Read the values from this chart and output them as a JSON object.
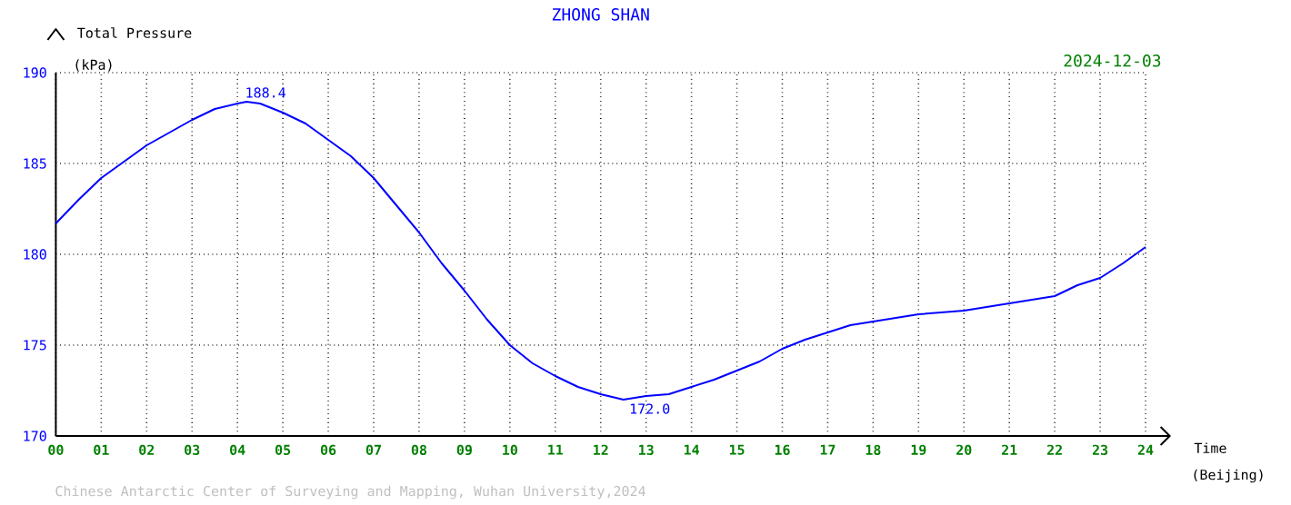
{
  "chart_data": {
    "type": "line",
    "title": "ZHONG SHAN",
    "subtitle": "2024-12-03",
    "ylabel": "Total Pressure",
    "xlabel": "Time",
    "annotations": [
      {
        "text": "188.4",
        "x": 4.2,
        "y": 188.4
      },
      {
        "text": "172.0",
        "x": 12.5,
        "y": 172.0
      },
      "(kPa)",
      "(Beijing)",
      "Chinese Antarctic Center of Surveying and Mapping, Wuhan University,2024"
    ],
    "x": [
      0,
      0.5,
      1,
      1.5,
      2,
      2.5,
      3,
      3.5,
      4,
      4.2,
      4.5,
      5,
      5.5,
      6,
      6.5,
      7,
      7.5,
      8,
      8.5,
      9,
      9.5,
      10,
      10.5,
      11,
      11.5,
      12,
      12.5,
      13,
      13.5,
      14,
      14.5,
      15,
      15.5,
      16,
      16.5,
      17,
      17.5,
      18,
      18.5,
      19,
      19.5,
      20,
      20.5,
      21,
      21.5,
      22,
      22.5,
      23,
      23.5,
      24
    ],
    "series": [
      {
        "color": "#0000ff",
        "values": [
          181.7,
          183.0,
          184.2,
          185.1,
          186.0,
          186.7,
          187.4,
          188.0,
          188.3,
          188.4,
          188.3,
          187.8,
          187.2,
          186.3,
          185.4,
          184.2,
          182.7,
          181.2,
          179.5,
          178.0,
          176.4,
          175.0,
          174.0,
          173.3,
          172.7,
          172.3,
          172.0,
          172.2,
          172.3,
          172.7,
          173.1,
          173.6,
          174.1,
          174.8,
          175.3,
          175.7,
          176.1,
          176.3,
          176.5,
          176.7,
          176.8,
          176.9,
          177.1,
          177.3,
          177.5,
          177.7,
          178.3,
          178.7,
          179.5,
          180.4
        ]
      }
    ],
    "xlim": [
      0,
      24
    ],
    "ylim": [
      170,
      190
    ],
    "xticks": [
      {
        "value": 0,
        "label": "00"
      },
      {
        "value": 1,
        "label": "01"
      },
      {
        "value": 2,
        "label": "02"
      },
      {
        "value": 3,
        "label": "03"
      },
      {
        "value": 4,
        "label": "04"
      },
      {
        "value": 5,
        "label": "05"
      },
      {
        "value": 6,
        "label": "06"
      },
      {
        "value": 7,
        "label": "07"
      },
      {
        "value": 8,
        "label": "08"
      },
      {
        "value": 9,
        "label": "09"
      },
      {
        "value": 10,
        "label": "10"
      },
      {
        "value": 11,
        "label": "11"
      },
      {
        "value": 12,
        "label": "12"
      },
      {
        "value": 13,
        "label": "13"
      },
      {
        "value": 14,
        "label": "14"
      },
      {
        "value": 15,
        "label": "15"
      },
      {
        "value": 16,
        "label": "16"
      },
      {
        "value": 17,
        "label": "17"
      },
      {
        "value": 18,
        "label": "18"
      },
      {
        "value": 19,
        "label": "19"
      },
      {
        "value": 20,
        "label": "20"
      },
      {
        "value": 21,
        "label": "21"
      },
      {
        "value": 22,
        "label": "22"
      },
      {
        "value": 23,
        "label": "23"
      },
      {
        "value": 24,
        "label": "24"
      }
    ],
    "yticks": [
      170,
      175,
      180,
      185,
      190
    ],
    "grid": true,
    "marker": "none",
    "line_style": "solid"
  }
}
